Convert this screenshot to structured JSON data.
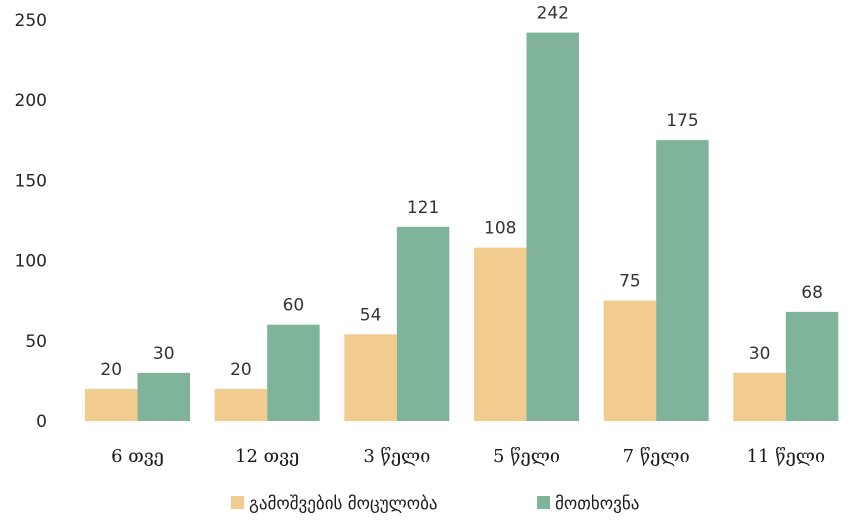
{
  "chart_data": {
    "type": "bar",
    "categories": [
      "6 თვე",
      "12 თვე",
      "3 წელი",
      "5 წელი",
      "7 წელი",
      "11 წელი"
    ],
    "series": [
      {
        "name": "გამოშვების მოცულობა",
        "values": [
          20,
          20,
          54,
          108,
          75,
          30
        ],
        "color": "#F2CB8E"
      },
      {
        "name": "მოთხოვნა",
        "values": [
          30,
          60,
          121,
          242,
          175,
          68
        ],
        "color": "#7FB39A"
      }
    ],
    "yticks": [
      0,
      50,
      100,
      150,
      200,
      250
    ],
    "ylim": [
      0,
      250
    ],
    "grid": false,
    "legend_position": "bottom",
    "data_labels": true
  }
}
